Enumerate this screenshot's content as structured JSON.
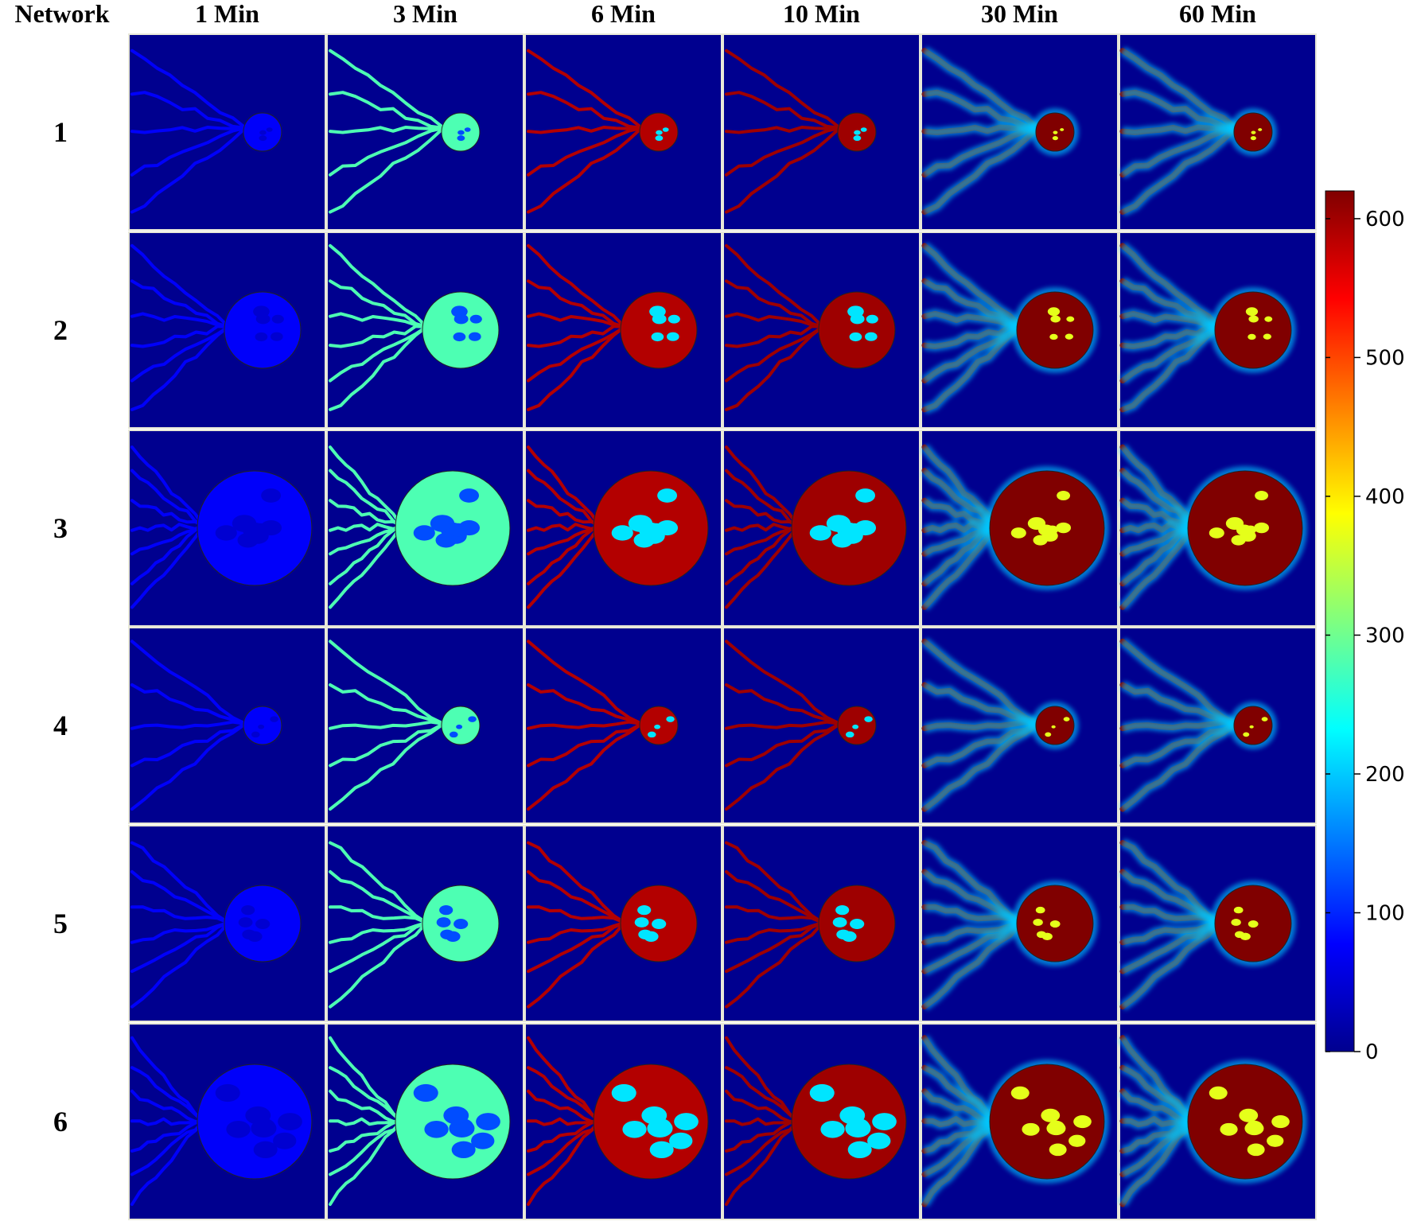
{
  "header": {
    "network_label": "Network",
    "time_labels": [
      "1 Min",
      "3 Min",
      "6 Min",
      "10 Min",
      "30 Min",
      "60 Min"
    ]
  },
  "rows": [
    {
      "label": "1",
      "circle_radius": "small"
    },
    {
      "label": "2",
      "circle_radius": "medium"
    },
    {
      "label": "3",
      "circle_radius": "large"
    },
    {
      "label": "4",
      "circle_radius": "small"
    },
    {
      "label": "5",
      "circle_radius": "medium"
    },
    {
      "label": "6",
      "circle_radius": "large"
    }
  ],
  "colorbar": {
    "ticks": [
      "0",
      "100",
      "200",
      "300",
      "400",
      "500",
      "600"
    ],
    "min": 0,
    "max": 620,
    "colormap": "jet"
  },
  "time_level": [
    0.12,
    0.45,
    0.95,
    0.97,
    1.0,
    1.0
  ],
  "colors": {
    "background_field": "#00008f",
    "panel_border": "#e8e8d8"
  }
}
